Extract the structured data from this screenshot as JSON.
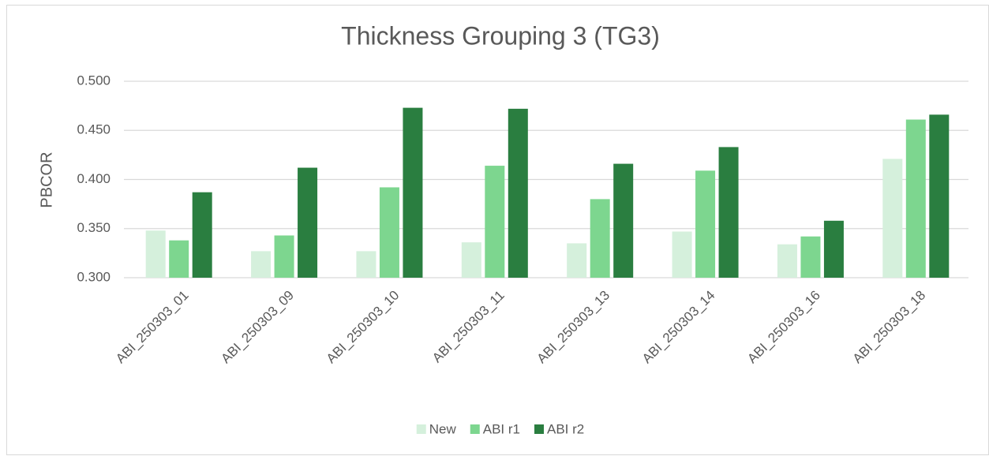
{
  "chart_data": {
    "type": "bar",
    "title": "Thickness Grouping 3 (TG3)",
    "y_label": "PBCOR",
    "categories": [
      "ABI_250303_01",
      "ABI_250303_09",
      "ABI_250303_10",
      "ABI_250303_11",
      "ABI_250303_13",
      "ABI_250303_14",
      "ABI_250303_16",
      "ABI_250303_18"
    ],
    "series": [
      {
        "name": "New",
        "color": "#d5f0dc",
        "values": [
          0.348,
          0.327,
          0.327,
          0.336,
          0.335,
          0.347,
          0.334,
          0.421
        ]
      },
      {
        "name": "ABI r1",
        "color": "#7dd68f",
        "values": [
          0.338,
          0.343,
          0.392,
          0.414,
          0.38,
          0.409,
          0.342,
          0.461
        ]
      },
      {
        "name": "ABI r2",
        "color": "#2a7e40",
        "values": [
          0.387,
          0.412,
          0.473,
          0.472,
          0.416,
          0.433,
          0.358,
          0.466
        ]
      }
    ],
    "ylim": [
      0.3,
      0.5
    ],
    "yticks": [
      {
        "value": 0.3,
        "label": "0.300"
      },
      {
        "value": 0.35,
        "label": "0.350"
      },
      {
        "value": 0.4,
        "label": "0.400"
      },
      {
        "value": 0.45,
        "label": "0.450"
      },
      {
        "value": 0.5,
        "label": "0.500"
      }
    ],
    "grid": true,
    "legend": "bottom"
  }
}
